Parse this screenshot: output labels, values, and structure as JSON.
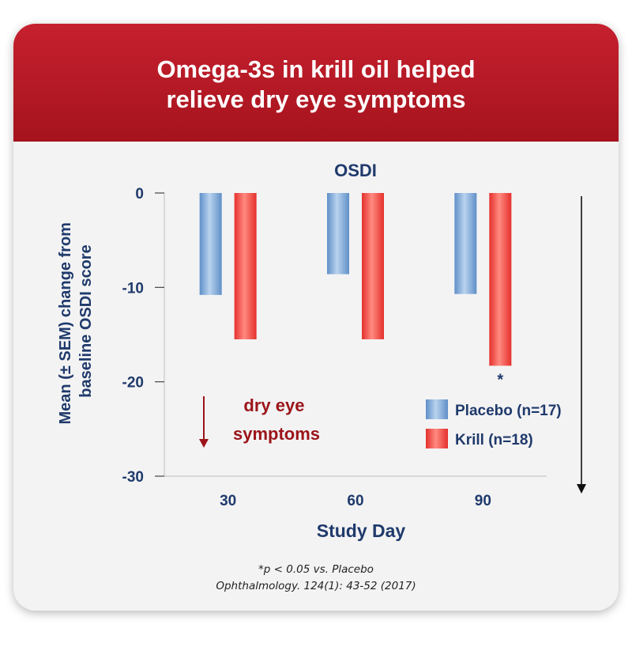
{
  "header": {
    "title": "Omega-3s in krill oil helped\nrelieve dry eye symptoms"
  },
  "colors": {
    "header_red": "#b71a25",
    "axis_text": "#1f3a6b",
    "placebo_blue": "#7aa7d8",
    "krill_red": "#ef4a44",
    "symptom_red": "#9b1419"
  },
  "chart_data": {
    "type": "bar",
    "title": "OSDI",
    "xlabel": "Study Day",
    "ylabel": "Mean (± SEM) change from baseline OSDI score",
    "categories": [
      "30",
      "60",
      "90"
    ],
    "ylim": [
      -30,
      0
    ],
    "yticks": [
      0,
      -10,
      -20,
      -30
    ],
    "grid": false,
    "legend_position": "right",
    "series": [
      {
        "name": "Placebo (n=17)",
        "values": [
          -10.8,
          -8.6,
          -10.7
        ],
        "color": "#7aa7d8"
      },
      {
        "name": "Krill (n=18)",
        "values": [
          -15.5,
          -15.5,
          -18.3
        ],
        "color": "#ef4a44"
      }
    ],
    "annotations": {
      "significance_marker": "*",
      "significance_category": "90",
      "direction_label": "dry eye\nsymptoms"
    }
  },
  "footnotes": {
    "significance": "*p < 0.05 vs. Placebo",
    "citation": "Ophthalmology. 124(1): 43-52 (2017)"
  }
}
